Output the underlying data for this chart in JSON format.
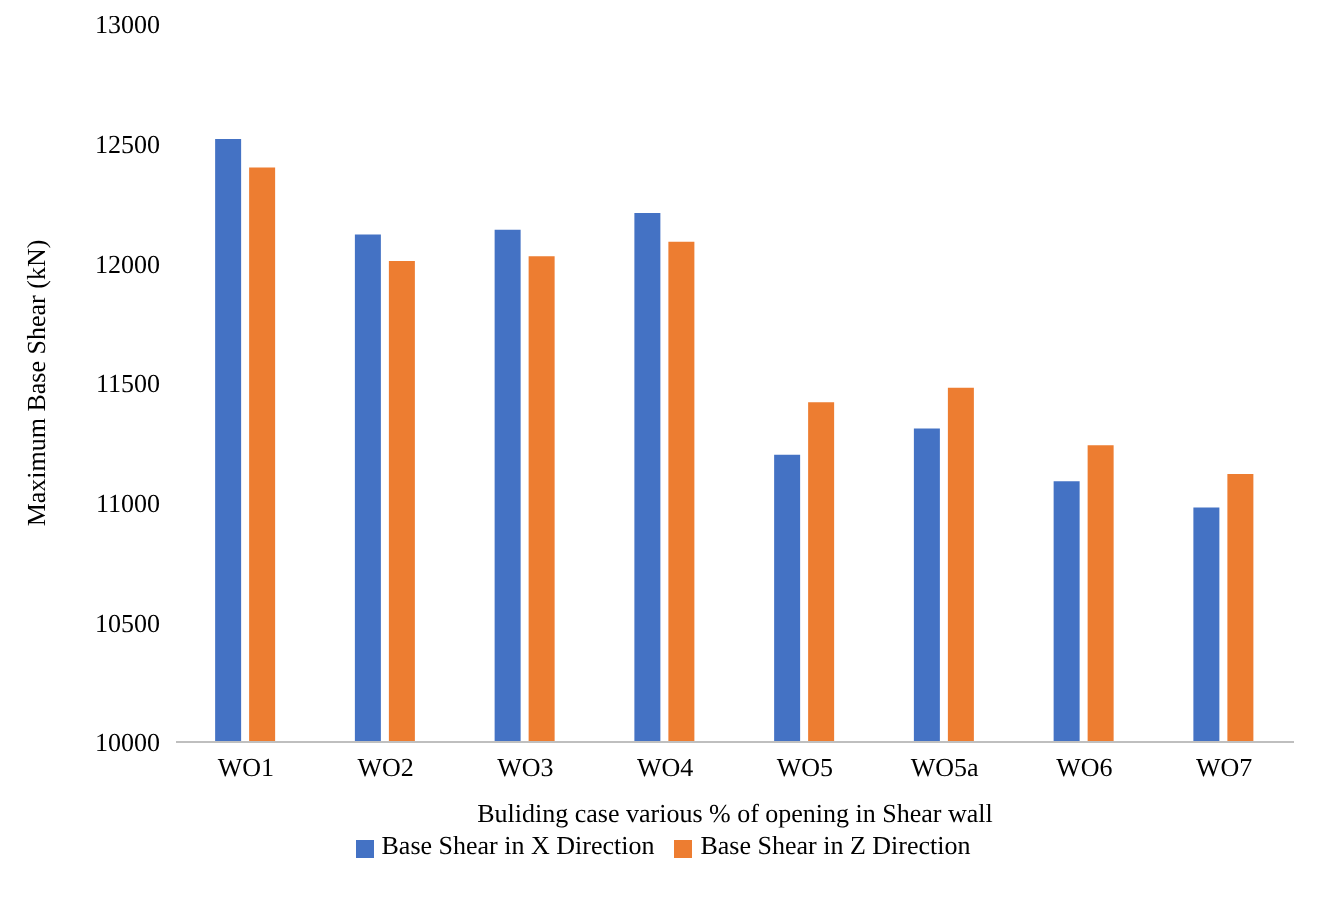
{
  "chart_data": {
    "type": "bar",
    "xlabel": "Buliding case various % of opening in Shear wall",
    "ylabel": "Maximum Base Shear (kN)",
    "categories": [
      "WO1",
      "WO2",
      "WO3",
      "WO4",
      "WO5",
      "WO5a",
      "WO6",
      "WO7"
    ],
    "series": [
      {
        "name": "Base Shear in X Direction",
        "color": "#4472c4",
        "values": [
          12520,
          12120,
          12140,
          12210,
          11200,
          11310,
          11090,
          10980
        ]
      },
      {
        "name": "Base Shear in Z Direction",
        "color": "#ed7d31",
        "values": [
          12400,
          12010,
          12030,
          12090,
          11420,
          11480,
          11240,
          11120
        ]
      }
    ],
    "ylim": [
      10000,
      13000
    ],
    "yticks": [
      10000,
      10500,
      11000,
      11500,
      12000,
      12500,
      13000
    ],
    "grid": false,
    "legend": "bottom"
  }
}
